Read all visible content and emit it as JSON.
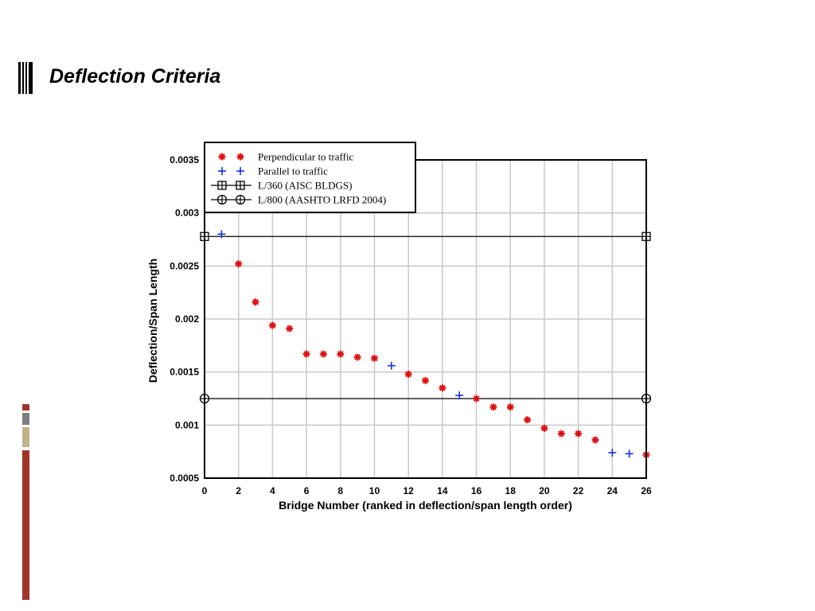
{
  "slide": {
    "title": "Deflection Criteria",
    "accent_colors": [
      "#a0342a",
      "#7f7f7f",
      "#c2b28a",
      "#a0342a"
    ]
  },
  "chart_data": {
    "type": "scatter",
    "title": "",
    "xlabel": "Bridge Number (ranked in deflection/span length order)",
    "ylabel": "Deflection/Span Length",
    "xlim": [
      0,
      26
    ],
    "ylim": [
      0.0005,
      0.0035
    ],
    "x_ticks": [
      "0",
      "2",
      "4",
      "6",
      "8",
      "10",
      "12",
      "14",
      "16",
      "18",
      "20",
      "22",
      "24",
      "26"
    ],
    "y_ticks": [
      "0.0005",
      "0.001",
      "0.0015",
      "0.002",
      "0.0025",
      "0.003",
      "0.0035"
    ],
    "grid": true,
    "legend_position": "top-left",
    "series": [
      {
        "name": "Perpendicular to traffic",
        "marker": "asterisk",
        "color": "#e01010",
        "points": [
          [
            2,
            0.00252
          ],
          [
            3,
            0.00216
          ],
          [
            4,
            0.00194
          ],
          [
            5,
            0.00191
          ],
          [
            6,
            0.00167
          ],
          [
            7,
            0.00167
          ],
          [
            8,
            0.00167
          ],
          [
            9,
            0.00164
          ],
          [
            10,
            0.00163
          ],
          [
            12,
            0.00148
          ],
          [
            13,
            0.00142
          ],
          [
            14,
            0.00135
          ],
          [
            16,
            0.00125
          ],
          [
            17,
            0.00117
          ],
          [
            18,
            0.00117
          ],
          [
            19,
            0.00105
          ],
          [
            20,
            0.00097
          ],
          [
            21,
            0.00092
          ],
          [
            22,
            0.00092
          ],
          [
            23,
            0.00086
          ],
          [
            26,
            0.00072
          ]
        ]
      },
      {
        "name": "Parallel to traffic",
        "marker": "plus",
        "color": "#1030e0",
        "points": [
          [
            1,
            0.0028
          ],
          [
            11,
            0.00156
          ],
          [
            15,
            0.00128
          ],
          [
            24,
            0.00074
          ],
          [
            25,
            0.00073
          ]
        ]
      },
      {
        "name": "L/360 (AISC BLDGS)",
        "marker": "boxed-plus",
        "color": "#000000",
        "points": [
          [
            0,
            0.002778
          ],
          [
            26,
            0.002778
          ]
        ]
      },
      {
        "name": "L/800 (AASHTO LRFD 2004)",
        "marker": "circled-plus",
        "color": "#000000",
        "points": [
          [
            0,
            0.00125
          ],
          [
            26,
            0.00125
          ]
        ]
      }
    ]
  }
}
